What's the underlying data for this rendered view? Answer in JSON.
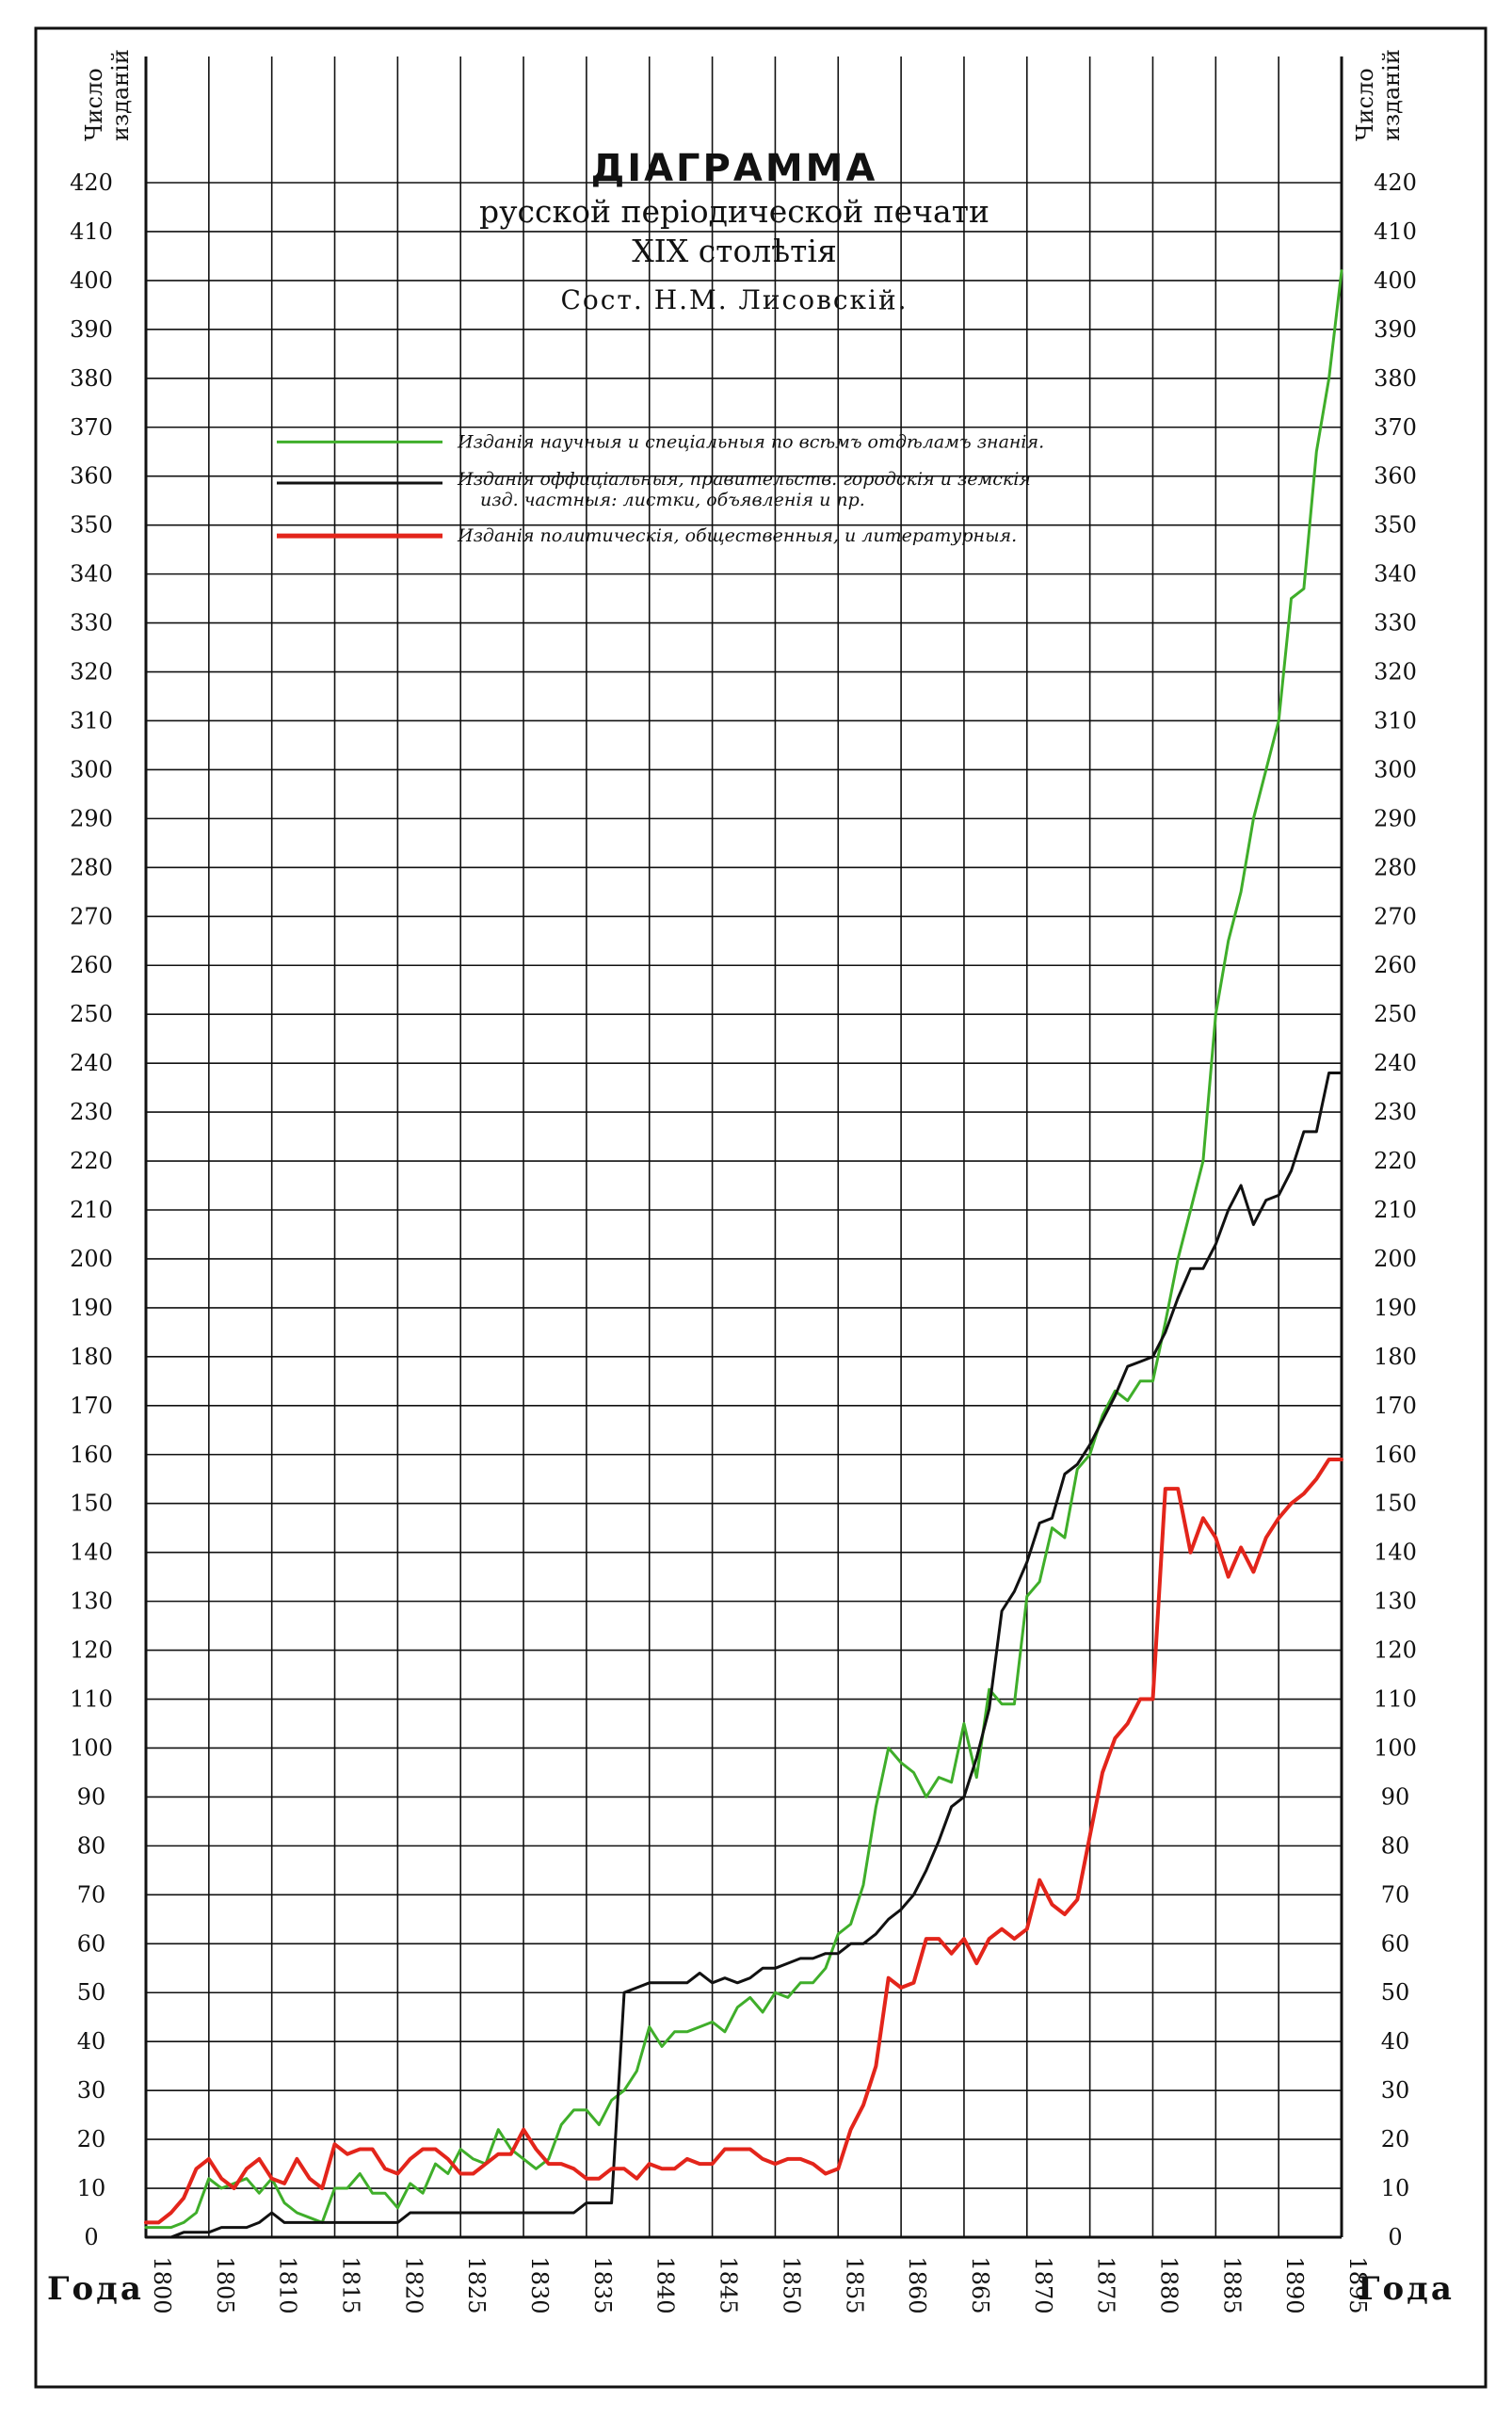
{
  "chart_data": {
    "type": "line",
    "title": "ДІАГРАММА",
    "subtitle": "русской періодической печати",
    "subtitle2": "XIX столѣтія",
    "author": "Сост. Н.М. Лисовскій.",
    "ylabel_left": [
      "Число",
      "изданій"
    ],
    "ylabel_right": [
      "Число",
      "изданій"
    ],
    "xlabel_left": "Года",
    "xlabel_right": "Года",
    "xlim": [
      1800,
      1895
    ],
    "ylim": [
      0,
      420
    ],
    "y_ticks": [
      0,
      10,
      20,
      30,
      40,
      50,
      60,
      70,
      80,
      90,
      100,
      110,
      120,
      130,
      140,
      150,
      160,
      170,
      180,
      190,
      200,
      210,
      220,
      230,
      240,
      250,
      260,
      270,
      280,
      290,
      300,
      310,
      320,
      330,
      340,
      350,
      360,
      370,
      380,
      390,
      400,
      410,
      420
    ],
    "y_tick_labels_right": [
      "0",
      "10",
      "20",
      "30",
      "40",
      "50",
      "60",
      "70",
      "80",
      "90",
      "100",
      "110",
      "120",
      "130",
      "140",
      "150",
      "160",
      "170",
      "180",
      "190",
      "200",
      "210",
      "220",
      "230",
      "240",
      "250",
      "260",
      "270",
      "280",
      "290",
      "300",
      "310",
      "320",
      "330",
      "340",
      "350",
      "360",
      "370",
      "380",
      "390",
      "400",
      "410",
      "420"
    ],
    "y_tick_labels_left": [
      "0",
      "10",
      "20",
      "30",
      "40",
      "50",
      "60",
      "70",
      "80",
      "90",
      "100",
      "110",
      "120",
      "130",
      "140",
      "150",
      "160",
      "170",
      "180",
      "190",
      "200",
      "210",
      "220",
      "230",
      "240",
      "250",
      "260",
      "270",
      "280",
      "290",
      "300",
      "310",
      "320",
      "330",
      "340",
      "350",
      "360",
      "370",
      "380",
      "390",
      "400",
      "410",
      "420"
    ],
    "x_tick_labels": [
      "1800",
      "1805",
      "1810",
      "1815",
      "1820",
      "1825",
      "1830",
      "1835",
      "1840",
      "1845",
      "1850",
      "1855",
      "1860",
      "1865",
      "1870",
      "1875",
      "1880",
      "1885",
      "1890",
      "1895"
    ],
    "grid": true,
    "legend_position": "top-left",
    "series": [
      {
        "name": "Изданія научныя и спеціальныя по всѣмъ отдѣламъ знанія.",
        "color": "#3fae2a",
        "x": [
          1800,
          1801,
          1802,
          1803,
          1804,
          1805,
          1806,
          1807,
          1808,
          1809,
          1810,
          1811,
          1812,
          1813,
          1814,
          1815,
          1816,
          1817,
          1818,
          1819,
          1820,
          1821,
          1822,
          1823,
          1824,
          1825,
          1826,
          1827,
          1828,
          1829,
          1830,
          1831,
          1832,
          1833,
          1834,
          1835,
          1836,
          1837,
          1838,
          1839,
          1840,
          1841,
          1842,
          1843,
          1844,
          1845,
          1846,
          1847,
          1848,
          1849,
          1850,
          1851,
          1852,
          1853,
          1854,
          1855,
          1856,
          1857,
          1858,
          1859,
          1860,
          1861,
          1862,
          1863,
          1864,
          1865,
          1866,
          1867,
          1868,
          1869,
          1870,
          1871,
          1872,
          1873,
          1874,
          1875,
          1876,
          1877,
          1878,
          1879,
          1880,
          1881,
          1882,
          1883,
          1884,
          1885,
          1886,
          1887,
          1888,
          1889,
          1890,
          1891,
          1892,
          1893,
          1894,
          1895
        ],
        "values": [
          2,
          2,
          2,
          3,
          5,
          12,
          10,
          11,
          12,
          9,
          12,
          7,
          5,
          4,
          3,
          10,
          10,
          13,
          9,
          9,
          6,
          11,
          9,
          15,
          13,
          18,
          16,
          15,
          22,
          18,
          16,
          14,
          16,
          23,
          26,
          26,
          23,
          28,
          30,
          34,
          43,
          39,
          42,
          42,
          43,
          44,
          42,
          47,
          49,
          46,
          50,
          49,
          52,
          52,
          55,
          62,
          64,
          72,
          88,
          100,
          97,
          95,
          90,
          94,
          93,
          105,
          94,
          112,
          109,
          109,
          131,
          134,
          145,
          143,
          157,
          160,
          168,
          173,
          171,
          175,
          175,
          187,
          200,
          210,
          220,
          250,
          265,
          275,
          290,
          300,
          310,
          335,
          337,
          365,
          380,
          402
        ]
      },
      {
        "name": "Изданія оффиціальныя, правительств. городскія и земскія изд. частныя: листки, объявленія и пр.",
        "color": "#111111",
        "x": [
          1800,
          1801,
          1802,
          1803,
          1804,
          1805,
          1806,
          1807,
          1808,
          1809,
          1810,
          1811,
          1812,
          1813,
          1814,
          1815,
          1816,
          1817,
          1818,
          1819,
          1820,
          1821,
          1822,
          1823,
          1824,
          1825,
          1826,
          1827,
          1828,
          1829,
          1830,
          1831,
          1832,
          1833,
          1834,
          1835,
          1836,
          1837,
          1838,
          1839,
          1840,
          1841,
          1842,
          1843,
          1844,
          1845,
          1846,
          1847,
          1848,
          1849,
          1850,
          1851,
          1852,
          1853,
          1854,
          1855,
          1856,
          1857,
          1858,
          1859,
          1860,
          1861,
          1862,
          1863,
          1864,
          1865,
          1866,
          1867,
          1868,
          1869,
          1870,
          1871,
          1872,
          1873,
          1874,
          1875,
          1876,
          1877,
          1878,
          1879,
          1880,
          1881,
          1882,
          1883,
          1884,
          1885,
          1886,
          1887,
          1888,
          1889,
          1890,
          1891,
          1892,
          1893,
          1894,
          1895
        ],
        "values": [
          0,
          0,
          0,
          1,
          1,
          1,
          2,
          2,
          2,
          3,
          5,
          3,
          3,
          3,
          3,
          3,
          3,
          3,
          3,
          3,
          3,
          5,
          5,
          5,
          5,
          5,
          5,
          5,
          5,
          5,
          5,
          5,
          5,
          5,
          5,
          7,
          7,
          7,
          50,
          51,
          52,
          52,
          52,
          52,
          54,
          52,
          53,
          52,
          53,
          55,
          55,
          56,
          57,
          57,
          58,
          58,
          60,
          60,
          62,
          65,
          67,
          70,
          75,
          81,
          88,
          90,
          98,
          108,
          128,
          132,
          138,
          146,
          147,
          156,
          158,
          162,
          167,
          172,
          178,
          179,
          180,
          185,
          192,
          198,
          198,
          203,
          210,
          215,
          207,
          212,
          213,
          218,
          226,
          226,
          238,
          238
        ]
      },
      {
        "name": "Изданія политическія, общественныя, и литературныя.",
        "color": "#e3251b",
        "x": [
          1800,
          1801,
          1802,
          1803,
          1804,
          1805,
          1806,
          1807,
          1808,
          1809,
          1810,
          1811,
          1812,
          1813,
          1814,
          1815,
          1816,
          1817,
          1818,
          1819,
          1820,
          1821,
          1822,
          1823,
          1824,
          1825,
          1826,
          1827,
          1828,
          1829,
          1830,
          1831,
          1832,
          1833,
          1834,
          1835,
          1836,
          1837,
          1838,
          1839,
          1840,
          1841,
          1842,
          1843,
          1844,
          1845,
          1846,
          1847,
          1848,
          1849,
          1850,
          1851,
          1852,
          1853,
          1854,
          1855,
          1856,
          1857,
          1858,
          1859,
          1860,
          1861,
          1862,
          1863,
          1864,
          1865,
          1866,
          1867,
          1868,
          1869,
          1870,
          1871,
          1872,
          1873,
          1874,
          1875,
          1876,
          1877,
          1878,
          1879,
          1880,
          1881,
          1882,
          1883,
          1884,
          1885,
          1886,
          1887,
          1888,
          1889,
          1890,
          1891,
          1892,
          1893,
          1894,
          1895
        ],
        "values": [
          3,
          3,
          5,
          8,
          14,
          16,
          12,
          10,
          14,
          16,
          12,
          11,
          16,
          12,
          10,
          19,
          17,
          18,
          18,
          14,
          13,
          16,
          18,
          18,
          16,
          13,
          13,
          15,
          17,
          17,
          22,
          18,
          15,
          15,
          14,
          12,
          12,
          14,
          14,
          12,
          15,
          14,
          14,
          16,
          15,
          15,
          18,
          18,
          18,
          16,
          15,
          16,
          16,
          15,
          13,
          14,
          22,
          27,
          35,
          53,
          51,
          52,
          61,
          61,
          58,
          61,
          56,
          61,
          63,
          61,
          63,
          73,
          68,
          66,
          69,
          82,
          95,
          102,
          105,
          110,
          110,
          153,
          153,
          140,
          147,
          143,
          135,
          141,
          136,
          143,
          147,
          150,
          152,
          155,
          159,
          159
        ]
      }
    ]
  }
}
